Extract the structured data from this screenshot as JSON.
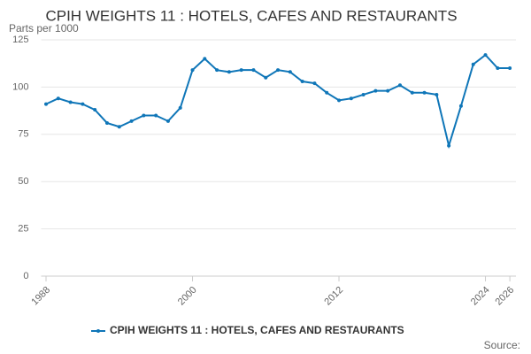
{
  "chart_data": {
    "type": "line",
    "title": "CPIH WEIGHTS 11 : HOTELS, CAFES AND RESTAURANTS",
    "y_label": "Parts per 1000",
    "source": "Source:",
    "x": [
      1988,
      1989,
      1990,
      1991,
      1992,
      1993,
      1994,
      1995,
      1996,
      1997,
      1998,
      1999,
      2000,
      2001,
      2002,
      2003,
      2004,
      2005,
      2006,
      2007,
      2008,
      2009,
      2010,
      2011,
      2012,
      2013,
      2014,
      2015,
      2016,
      2017,
      2018,
      2019,
      2020,
      2021,
      2022,
      2023,
      2024,
      2025,
      2026
    ],
    "series": [
      {
        "name": "CPIH WEIGHTS 11 : HOTELS, CAFES AND RESTAURANTS",
        "color": "#0f76b8",
        "values": [
          91,
          94,
          92,
          91,
          88,
          81,
          79,
          82,
          85,
          85,
          82,
          89,
          109,
          115,
          109,
          108,
          109,
          109,
          105,
          109,
          108,
          103,
          102,
          97,
          93,
          94,
          96,
          98,
          98,
          101,
          97,
          97,
          96,
          69,
          90,
          112,
          117,
          110,
          110
        ]
      }
    ],
    "xlim": [
      1987.6,
      2026.5
    ],
    "xticks": [
      1988,
      2000,
      2012,
      2024,
      2026
    ],
    "ylim": [
      0,
      125
    ],
    "yticks": [
      0,
      25,
      50,
      75,
      100,
      125
    ],
    "grid": true
  }
}
